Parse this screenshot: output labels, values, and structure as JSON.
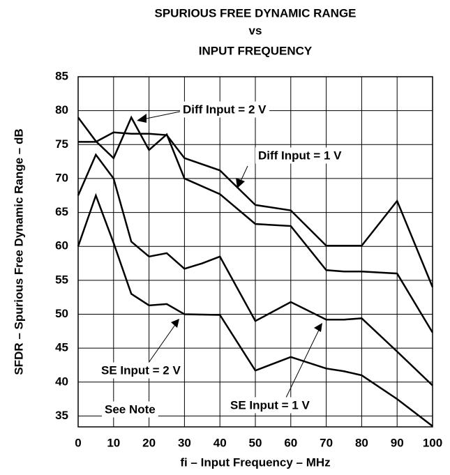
{
  "chart_data": {
    "type": "line",
    "title": [
      "SPURIOUS FREE DYNAMIC RANGE",
      "vs",
      "INPUT FREQUENCY"
    ],
    "xlabel": "fi – Input Frequency – MHz",
    "ylabel": "SFDR – Spurious Free Dynamic Range – dB",
    "xlim": [
      0,
      100
    ],
    "xticks": [
      0,
      10,
      20,
      30,
      40,
      50,
      60,
      70,
      80,
      90,
      100
    ],
    "ylim": [
      33.4,
      85
    ],
    "yticks": [
      35,
      40,
      45,
      50,
      55,
      60,
      65,
      70,
      75,
      80,
      85
    ],
    "grid": true,
    "series": [
      {
        "name": "Diff Input = 2 V",
        "color": "#000000",
        "x": [
          0,
          5,
          10,
          15,
          20,
          25,
          30,
          40,
          50,
          60,
          70,
          75,
          80,
          90,
          100
        ],
        "values": [
          79,
          75.5,
          73,
          79,
          74.2,
          76.5,
          70,
          67.7,
          63.3,
          63,
          56.5,
          56.3,
          56.3,
          56,
          47.3
        ]
      },
      {
        "name": "Diff Input = 1 V",
        "color": "#000000",
        "x": [
          0,
          5,
          10,
          15,
          20,
          25,
          30,
          40,
          50,
          60,
          70,
          80,
          90,
          100
        ],
        "values": [
          75.4,
          75.4,
          76.8,
          76.6,
          76.6,
          76.4,
          73,
          71.2,
          66.1,
          65.3,
          60.1,
          60.1,
          66.7,
          54
        ]
      },
      {
        "name": "SE Input = 2 V",
        "color": "#000000",
        "x": [
          0,
          5,
          10,
          15,
          20,
          25,
          30,
          35,
          40,
          50,
          60,
          70,
          75,
          80,
          90,
          100
        ],
        "values": [
          67.5,
          73.5,
          70,
          60.7,
          58.5,
          59,
          56.7,
          57.5,
          58.5,
          49,
          51.8,
          49.2,
          49.2,
          49.4,
          44.5,
          39.5
        ]
      },
      {
        "name": "SE Input = 1 V",
        "color": "#000000",
        "x": [
          0,
          5,
          10,
          15,
          20,
          25,
          30,
          40,
          50,
          60,
          70,
          75,
          80,
          90,
          100
        ],
        "values": [
          60,
          67.5,
          60.5,
          53,
          51.3,
          51.5,
          50,
          49.9,
          41.7,
          43.7,
          42,
          41.6,
          41,
          37.5,
          33.5
        ]
      }
    ],
    "annotations": [
      "See Note"
    ]
  }
}
